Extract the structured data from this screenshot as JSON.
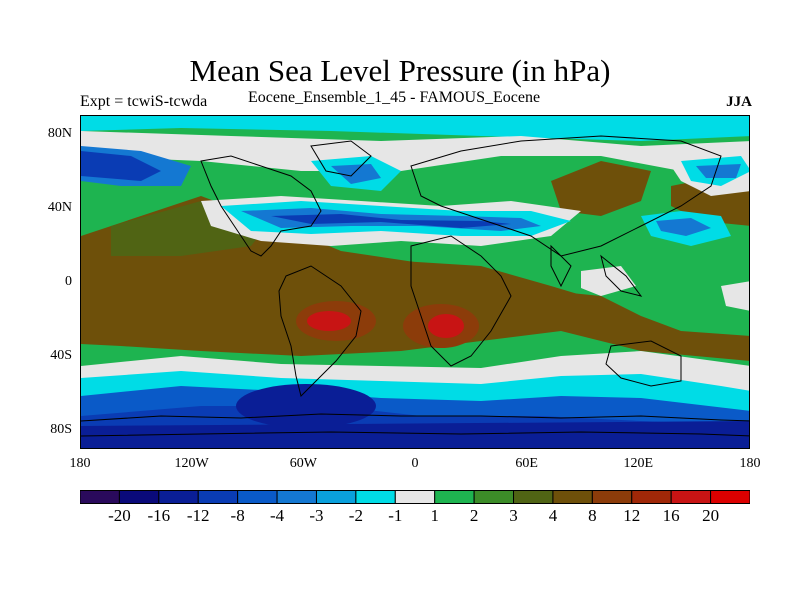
{
  "title": "Mean Sea Level Pressure (in hPa)",
  "expt_label": "Expt = tcwiS-tcwda",
  "experiment": "Eocene_Ensemble_1_45 - FAMOUS_Eocene",
  "season": "JJA",
  "axes": {
    "lat_ticks": [
      {
        "value": 80,
        "label": "80N"
      },
      {
        "value": 40,
        "label": "40N"
      },
      {
        "value": 0,
        "label": "0"
      },
      {
        "value": -40,
        "label": "40S"
      },
      {
        "value": -80,
        "label": "80S"
      }
    ],
    "lon_ticks": [
      {
        "value": -180,
        "label": "180"
      },
      {
        "value": -120,
        "label": "120W"
      },
      {
        "value": -60,
        "label": "60W"
      },
      {
        "value": 0,
        "label": "0"
      },
      {
        "value": 60,
        "label": "60E"
      },
      {
        "value": 120,
        "label": "120E"
      },
      {
        "value": 180,
        "label": "180"
      }
    ],
    "lat_range": [
      -90,
      90
    ],
    "lon_range": [
      -180,
      180
    ]
  },
  "colorbar": {
    "colors": [
      "#2a0a5c",
      "#0a0a7a",
      "#0a1e96",
      "#0a3cb4",
      "#0a5ac8",
      "#1478d2",
      "#0aa0dc",
      "#00dce6",
      "#e6e6e6",
      "#1eb450",
      "#3c8c28",
      "#506414",
      "#6e500a",
      "#8c3c0a",
      "#a02808",
      "#c81414",
      "#dc0000"
    ],
    "labels": [
      "-20",
      "-16",
      "-12",
      "-8",
      "-4",
      "-3",
      "-2",
      "-1",
      "1",
      "2",
      "3",
      "4",
      "8",
      "12",
      "16",
      "20"
    ]
  }
}
